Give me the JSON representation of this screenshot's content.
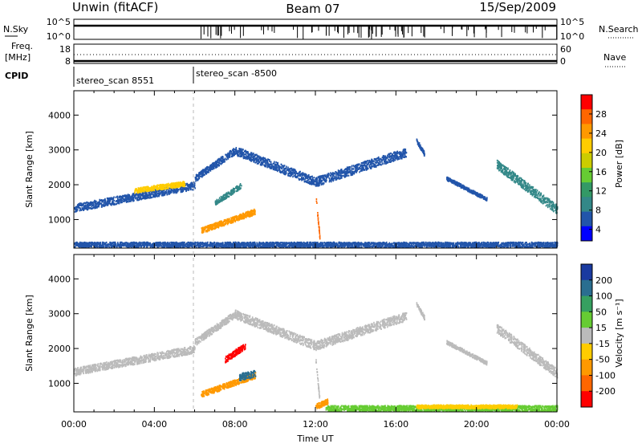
{
  "header": {
    "station": "Unwin (fitACF)",
    "beam": "Beam 07",
    "date": "15/Sep/2009"
  },
  "status_panels": {
    "nsky_label": "N.Sky",
    "nsearch_label": "N.Search",
    "freq_label_line1": "Freq.",
    "freq_label_line2": "[MHz]",
    "nave_label": "Nave",
    "cpid_label": "CPID",
    "nsky_ticks": [
      "10^5",
      "10^0"
    ],
    "nsearch_ticks": [
      "10^5",
      "10^0"
    ],
    "freq_ticks": [
      "18",
      "8"
    ],
    "nave_ticks": [
      "60",
      "0"
    ],
    "cpid_segments": [
      {
        "start_hour": 0,
        "end_hour": 6,
        "label": "stereo_scan 8551"
      },
      {
        "start_hour": 6,
        "end_hour": 24,
        "label": "stereo_scan -8500"
      }
    ]
  },
  "power_colorbar": {
    "label": "Power [dB]",
    "ticks": [
      "28",
      "24",
      "20",
      "16",
      "12",
      "8",
      "4"
    ],
    "colors": [
      "#ff0000",
      "#ff6600",
      "#ff9900",
      "#ffcc00",
      "#cccc00",
      "#66cc33",
      "#339966",
      "#338888",
      "#2255aa",
      "#0000ff"
    ]
  },
  "velocity_colorbar": {
    "label": "Velocity [m s⁻¹]",
    "ticks": [
      "200",
      "100",
      "50",
      "15",
      "-15",
      "-50",
      "-100",
      "-200"
    ],
    "colors": [
      "#1a3aa0",
      "#2a6e90",
      "#36a060",
      "#66cc33",
      "#bbbbbb",
      "#ffcc00",
      "#ff9900",
      "#ff6600",
      "#ff0000"
    ]
  },
  "chart_data": {
    "type": "heatmap",
    "title": "Unwin (fitACF) Beam 07 15/Sep/2009",
    "xlabel": "Time UT",
    "x_tick_labels": [
      "00:00",
      "04:00",
      "08:00",
      "12:00",
      "16:00",
      "20:00",
      "00:00"
    ],
    "x_range_hours": [
      0,
      24
    ],
    "ylabel": "Slant Range [km]",
    "y_tick_labels": [
      "1000",
      "2000",
      "3000",
      "4000"
    ],
    "y_range_km": [
      180,
      4700
    ],
    "panels": [
      {
        "name": "Power",
        "colorbar": "power_colorbar",
        "regions": [
          {
            "t": [
              0.0,
              6.0
            ],
            "r": [
              1350,
              2000
            ],
            "w": 220,
            "c": "#2255aa"
          },
          {
            "t": [
              3.0,
              5.5
            ],
            "r": [
              1850,
              2050
            ],
            "w": 140,
            "c": "#ffcc00"
          },
          {
            "t": [
              6.0,
              8.0
            ],
            "r": [
              2200,
              3000
            ],
            "w": 200,
            "c": "#2255aa"
          },
          {
            "t": [
              8.0,
              12.0
            ],
            "r": [
              3000,
              2100
            ],
            "w": 250,
            "c": "#2255aa"
          },
          {
            "t": [
              12.0,
              16.5
            ],
            "r": [
              2100,
              2950
            ],
            "w": 260,
            "c": "#2255aa"
          },
          {
            "t": [
              6.3,
              9.0
            ],
            "r": [
              700,
              1250
            ],
            "w": 160,
            "c": "#ff9900"
          },
          {
            "t": [
              7.0,
              8.3
            ],
            "r": [
              1500,
              2000
            ],
            "w": 150,
            "c": "#338888"
          },
          {
            "t": [
              12.0,
              12.2
            ],
            "r": [
              1700,
              500
            ],
            "w": 120,
            "c": "#ff6600"
          },
          {
            "t": [
              17.0,
              17.4
            ],
            "r": [
              3300,
              2900
            ],
            "w": 120,
            "c": "#2255aa"
          },
          {
            "t": [
              18.5,
              20.5
            ],
            "r": [
              2200,
              1600
            ],
            "w": 100,
            "c": "#2255aa"
          },
          {
            "t": [
              21.0,
              24.0
            ],
            "r": [
              2600,
              1300
            ],
            "w": 260,
            "c": "#338888"
          },
          {
            "t": [
              0.0,
              24.0
            ],
            "r": [
              300,
              300
            ],
            "w": 140,
            "c": "#2255aa"
          }
        ]
      },
      {
        "name": "Velocity",
        "colorbar": "velocity_colorbar",
        "regions": [
          {
            "t": [
              0.0,
              6.0
            ],
            "r": [
              1350,
              2000
            ],
            "w": 220,
            "c": "#bbbbbb"
          },
          {
            "t": [
              6.0,
              8.0
            ],
            "r": [
              2200,
              3000
            ],
            "w": 200,
            "c": "#bbbbbb"
          },
          {
            "t": [
              8.0,
              12.0
            ],
            "r": [
              3000,
              2100
            ],
            "w": 250,
            "c": "#bbbbbb"
          },
          {
            "t": [
              12.0,
              16.5
            ],
            "r": [
              2100,
              2950
            ],
            "w": 260,
            "c": "#bbbbbb"
          },
          {
            "t": [
              6.3,
              9.0
            ],
            "r": [
              700,
              1250
            ],
            "w": 160,
            "c": "#ff9900"
          },
          {
            "t": [
              8.2,
              9.0
            ],
            "r": [
              1200,
              1300
            ],
            "w": 200,
            "c": "#2a6e90"
          },
          {
            "t": [
              7.5,
              8.5
            ],
            "r": [
              1700,
              2100
            ],
            "w": 180,
            "c": "#ff0000"
          },
          {
            "t": [
              12.0,
              12.2
            ],
            "r": [
              1700,
              500
            ],
            "w": 120,
            "c": "#bbbbbb"
          },
          {
            "t": [
              12.0,
              12.6
            ],
            "r": [
              350,
              500
            ],
            "w": 150,
            "c": "#ff9900"
          },
          {
            "t": [
              17.0,
              17.4
            ],
            "r": [
              3300,
              2900
            ],
            "w": 120,
            "c": "#bbbbbb"
          },
          {
            "t": [
              18.5,
              20.5
            ],
            "r": [
              2200,
              1600
            ],
            "w": 100,
            "c": "#bbbbbb"
          },
          {
            "t": [
              21.0,
              24.0
            ],
            "r": [
              2600,
              1300
            ],
            "w": 260,
            "c": "#bbbbbb"
          },
          {
            "t": [
              12.5,
              24.0
            ],
            "r": [
              300,
              300
            ],
            "w": 160,
            "c": "#66cc33"
          },
          {
            "t": [
              17.0,
              22.0
            ],
            "r": [
              350,
              350
            ],
            "w": 100,
            "c": "#ffcc00"
          }
        ]
      }
    ]
  }
}
